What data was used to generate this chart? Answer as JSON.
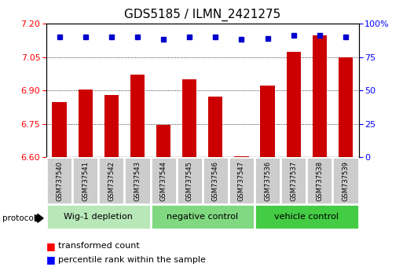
{
  "title": "GDS5185 / ILMN_2421275",
  "samples": [
    "GSM737540",
    "GSM737541",
    "GSM737542",
    "GSM737543",
    "GSM737544",
    "GSM737545",
    "GSM737546",
    "GSM737547",
    "GSM737536",
    "GSM737537",
    "GSM737538",
    "GSM737539"
  ],
  "bar_values": [
    6.848,
    6.903,
    6.878,
    6.97,
    6.745,
    6.95,
    6.872,
    6.605,
    6.922,
    7.072,
    7.148,
    7.05
  ],
  "percentile_values": [
    90,
    90,
    90,
    90,
    88,
    90,
    90,
    88,
    89,
    91,
    91,
    90
  ],
  "bar_color": "#CC0000",
  "dot_color": "#0000CC",
  "ylim_left": [
    6.6,
    7.2
  ],
  "ylim_right": [
    0,
    100
  ],
  "yticks_left": [
    6.6,
    6.75,
    6.9,
    7.05,
    7.2
  ],
  "yticks_right": [
    0,
    25,
    50,
    75,
    100
  ],
  "grid_values": [
    6.75,
    6.9,
    7.05
  ],
  "groups": [
    {
      "label": "Wig-1 depletion",
      "start": 0,
      "end": 4,
      "color": "#b8e8b8"
    },
    {
      "label": "negative control",
      "start": 4,
      "end": 8,
      "color": "#80d880"
    },
    {
      "label": "vehicle control",
      "start": 8,
      "end": 12,
      "color": "#44cc44"
    }
  ],
  "group_colors": [
    "#b8e8b8",
    "#80d880",
    "#44cc44"
  ],
  "protocol_label": "protocol",
  "bar_width": 0.55,
  "title_fontsize": 11,
  "tick_fontsize": 8,
  "sample_fontsize": 6,
  "group_fontsize": 8,
  "legend_fontsize": 8
}
